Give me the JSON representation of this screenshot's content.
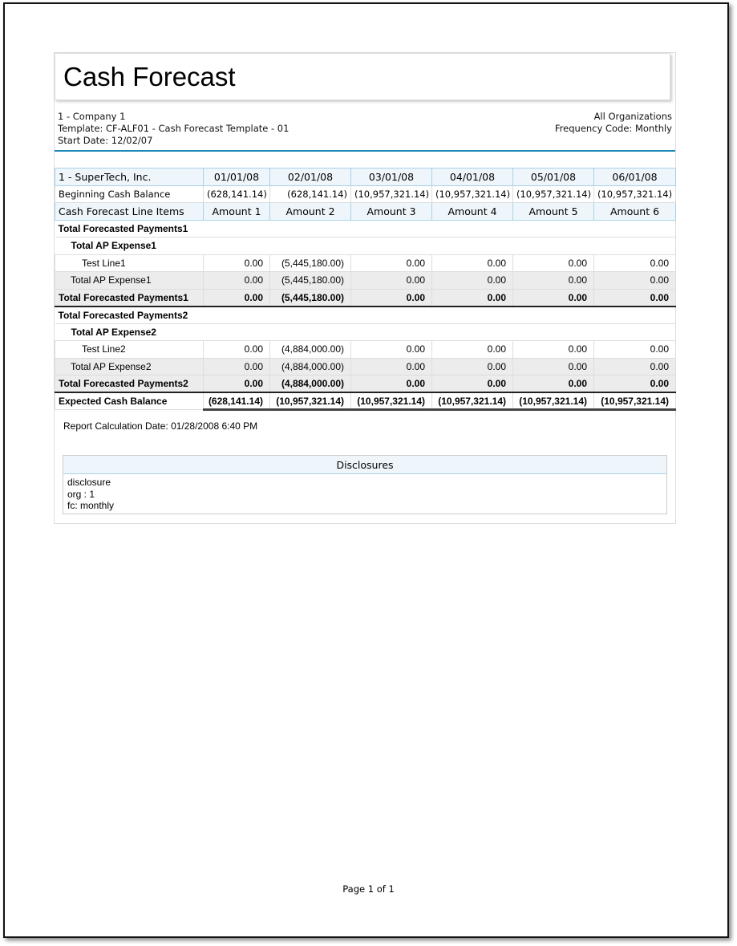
{
  "title": "Cash Forecast",
  "header": {
    "company": "1 - Company 1",
    "template": "Template: CF-ALF01 - Cash Forecast Template - 01",
    "start_date": "Start Date: 12/02/07",
    "organizations": "All Organizations",
    "frequency": "Frequency Code: Monthly"
  },
  "table": {
    "entity": "1 - SuperTech, Inc.",
    "dates": [
      "01/01/08",
      "02/01/08",
      "03/01/08",
      "04/01/08",
      "05/01/08",
      "06/01/08"
    ],
    "beginning_label": "Beginning Cash Balance",
    "beginning": [
      "(628,141.14)",
      "(628,141.14)",
      "(10,957,321.14)",
      "(10,957,321.14)",
      "(10,957,321.14)",
      "(10,957,321.14)"
    ],
    "items_label": "Cash Forecast Line Items",
    "amounts": [
      "Amount 1",
      "Amount 2",
      "Amount 3",
      "Amount 4",
      "Amount 5",
      "Amount 6"
    ],
    "rows": [
      {
        "type": "sec",
        "label": "Total Forecasted Payments1"
      },
      {
        "type": "sub",
        "label": "Total AP Expense1"
      },
      {
        "type": "line",
        "label": "Test Line1",
        "values": [
          "0.00",
          "(5,445,180.00)",
          "0.00",
          "0.00",
          "0.00",
          "0.00"
        ]
      },
      {
        "type": "subt",
        "label": "Total AP Expense1",
        "values": [
          "0.00",
          "(5,445,180.00)",
          "0.00",
          "0.00",
          "0.00",
          "0.00"
        ]
      },
      {
        "type": "tot",
        "label": "Total Forecasted Payments1",
        "values": [
          "0.00",
          "(5,445,180.00)",
          "0.00",
          "0.00",
          "0.00",
          "0.00"
        ]
      },
      {
        "type": "sec",
        "label": "Total Forecasted Payments2"
      },
      {
        "type": "sub",
        "label": "Total AP Expense2"
      },
      {
        "type": "line",
        "label": "Test Line2",
        "values": [
          "0.00",
          "(4,884,000.00)",
          "0.00",
          "0.00",
          "0.00",
          "0.00"
        ]
      },
      {
        "type": "subt",
        "label": "Total AP Expense2",
        "values": [
          "0.00",
          "(4,884,000.00)",
          "0.00",
          "0.00",
          "0.00",
          "0.00"
        ]
      },
      {
        "type": "tot",
        "label": "Total Forecasted Payments2",
        "values": [
          "0.00",
          "(4,884,000.00)",
          "0.00",
          "0.00",
          "0.00",
          "0.00"
        ]
      },
      {
        "type": "exp",
        "label": "Expected Cash Balance",
        "values": [
          "(628,141.14)",
          "(10,957,321.14)",
          "(10,957,321.14)",
          "(10,957,321.14)",
          "(10,957,321.14)",
          "(10,957,321.14)"
        ]
      }
    ]
  },
  "calculation_date": "Report Calculation Date: 01/28/2008 6:40 PM",
  "disclosures": {
    "title": "Disclosures",
    "lines": [
      "disclosure",
      "org : 1",
      "fc: monthly"
    ]
  },
  "footer": "Page 1 of 1"
}
